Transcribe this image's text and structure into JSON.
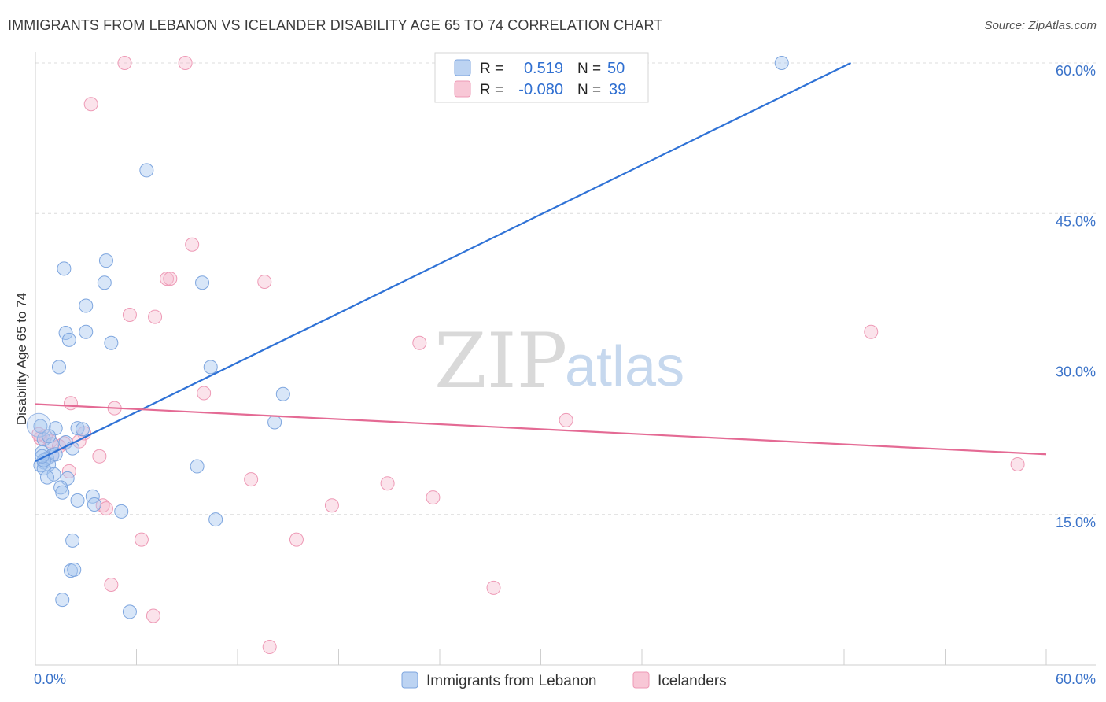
{
  "title": "IMMIGRANTS FROM LEBANON VS ICELANDER DISABILITY AGE 65 TO 74 CORRELATION CHART",
  "source": "Source: ZipAtlas.com",
  "colors": {
    "blue": "#2f72d6",
    "blue_fill": "#a9c8f0",
    "pink": "#e46a94",
    "pink_fill": "#f6b8cc",
    "tick": "#3b73c9"
  },
  "watermark": {
    "zip": "ZIP",
    "atlas": "atlas"
  },
  "legend": {
    "rows": [
      {
        "r_label": "R =",
        "r_value": "0.519",
        "n_label": "N =",
        "n_value": "50"
      },
      {
        "r_label": "R =",
        "r_value": "-0.080",
        "n_label": "N =",
        "n_value": "39"
      }
    ]
  },
  "bottom_legend": [
    "Immigrants from Lebanon",
    "Icelanders"
  ],
  "chart_data": {
    "type": "scatter",
    "title": "IMMIGRANTS FROM LEBANON VS ICELANDER DISABILITY AGE 65 TO 74 CORRELATION CHART",
    "xlabel": "",
    "ylabel": "Disability Age 65 to 74",
    "xlim": [
      0,
      60
    ],
    "ylim": [
      0,
      60
    ],
    "x_tick_labels": [
      "0.0%",
      "60.0%"
    ],
    "y_ticks": [
      15,
      30,
      45,
      60
    ],
    "y_tick_labels": [
      "15.0%",
      "30.0%",
      "45.0%",
      "60.0%"
    ],
    "series": [
      {
        "name": "Immigrants from Lebanon",
        "color": "#2f72d6",
        "R": 0.519,
        "N": 50,
        "trend": {
          "x": [
            0,
            48.4
          ],
          "y": [
            20.3,
            60
          ]
        },
        "points": [
          [
            44.3,
            60.0
          ],
          [
            6.6,
            49.3
          ],
          [
            4.2,
            40.3
          ],
          [
            1.7,
            39.5
          ],
          [
            4.1,
            38.1
          ],
          [
            9.9,
            38.1
          ],
          [
            3.0,
            35.8
          ],
          [
            1.8,
            33.1
          ],
          [
            3.0,
            33.2
          ],
          [
            2.0,
            32.4
          ],
          [
            4.5,
            32.1
          ],
          [
            1.4,
            29.7
          ],
          [
            10.4,
            29.7
          ],
          [
            14.7,
            27.0
          ],
          [
            14.2,
            24.2
          ],
          [
            0.3,
            23.8
          ],
          [
            1.2,
            23.6
          ],
          [
            2.5,
            23.6
          ],
          [
            0.5,
            22.5
          ],
          [
            1.8,
            22.2
          ],
          [
            1.0,
            22.0
          ],
          [
            2.2,
            21.6
          ],
          [
            0.4,
            21.2
          ],
          [
            1.0,
            20.9
          ],
          [
            0.7,
            20.6
          ],
          [
            0.5,
            20.2
          ],
          [
            0.8,
            20.0
          ],
          [
            0.3,
            19.9
          ],
          [
            0.5,
            19.6
          ],
          [
            1.1,
            19.0
          ],
          [
            0.7,
            18.7
          ],
          [
            1.9,
            18.6
          ],
          [
            1.5,
            17.7
          ],
          [
            1.6,
            17.2
          ],
          [
            3.4,
            16.8
          ],
          [
            2.5,
            16.4
          ],
          [
            3.5,
            16.0
          ],
          [
            5.1,
            15.3
          ],
          [
            9.6,
            19.8
          ],
          [
            10.7,
            14.5
          ],
          [
            2.2,
            12.4
          ],
          [
            2.1,
            9.4
          ],
          [
            2.3,
            9.5
          ],
          [
            1.6,
            6.5
          ],
          [
            5.6,
            5.3
          ],
          [
            0.5,
            20.4
          ],
          [
            1.2,
            21.0
          ],
          [
            0.8,
            22.8
          ],
          [
            2.8,
            23.5
          ],
          [
            0.4,
            20.8
          ]
        ]
      },
      {
        "name": "Icelanders",
        "color": "#e46a94",
        "R": -0.08,
        "N": 39,
        "trend": {
          "x": [
            0,
            60
          ],
          "y": [
            26.0,
            21.0
          ]
        },
        "points": [
          [
            5.3,
            60.0
          ],
          [
            8.9,
            60.0
          ],
          [
            3.3,
            55.9
          ],
          [
            9.3,
            41.9
          ],
          [
            7.8,
            38.5
          ],
          [
            8.0,
            38.5
          ],
          [
            13.6,
            38.2
          ],
          [
            5.6,
            34.9
          ],
          [
            7.1,
            34.7
          ],
          [
            22.8,
            32.1
          ],
          [
            49.6,
            33.2
          ],
          [
            10.0,
            27.1
          ],
          [
            2.1,
            26.1
          ],
          [
            4.7,
            25.6
          ],
          [
            31.5,
            24.4
          ],
          [
            0.3,
            22.6
          ],
          [
            0.9,
            22.3
          ],
          [
            1.7,
            22.1
          ],
          [
            2.9,
            23.1
          ],
          [
            2.6,
            22.3
          ],
          [
            3.8,
            20.8
          ],
          [
            1.0,
            20.9
          ],
          [
            2.0,
            19.3
          ],
          [
            12.8,
            18.5
          ],
          [
            20.9,
            18.1
          ],
          [
            58.3,
            20.0
          ],
          [
            23.6,
            16.7
          ],
          [
            17.6,
            15.9
          ],
          [
            4.0,
            15.9
          ],
          [
            4.2,
            15.6
          ],
          [
            6.3,
            12.5
          ],
          [
            15.5,
            12.5
          ],
          [
            4.5,
            8.0
          ],
          [
            27.2,
            7.7
          ],
          [
            7.0,
            4.9
          ],
          [
            13.9,
            1.8
          ],
          [
            0.6,
            22.8
          ],
          [
            1.4,
            21.8
          ],
          [
            0.2,
            23.0
          ]
        ]
      }
    ]
  }
}
